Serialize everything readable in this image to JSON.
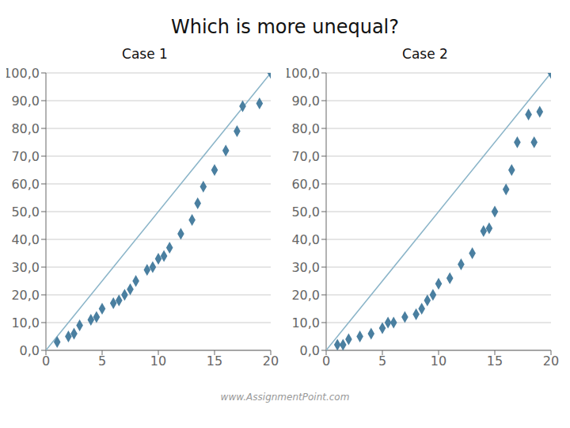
{
  "title": "Which is more unequal?",
  "annotations": [
    "www.AssignmentPoint.com"
  ],
  "chart_data": [
    {
      "type": "scatter",
      "title": "Case 1",
      "xlim": [
        0,
        20
      ],
      "ylim": [
        0,
        100
      ],
      "xticks": [
        0,
        5,
        10,
        15,
        20
      ],
      "yticks": [
        {
          "value": 0,
          "label": "0,0"
        },
        {
          "value": 10,
          "label": "10,0"
        },
        {
          "value": 20,
          "label": "20,0"
        },
        {
          "value": 30,
          "label": "30,0"
        },
        {
          "value": 40,
          "label": "40,0"
        },
        {
          "value": 50,
          "label": "50,0"
        },
        {
          "value": 60,
          "label": "60,0"
        },
        {
          "value": 70,
          "label": "70,0"
        },
        {
          "value": 80,
          "label": "80,0"
        },
        {
          "value": 90,
          "label": "90,0"
        },
        {
          "value": 100,
          "label": "100,0"
        }
      ],
      "grid": true,
      "series": [
        {
          "type": "line",
          "line_style": "solid",
          "color": "#8ab4c8",
          "x": [
            0,
            20
          ],
          "values": [
            0,
            100
          ]
        },
        {
          "type": "scatter",
          "marker": "diamond",
          "color": "#4a7fa0",
          "x": [
            1,
            2,
            2.5,
            3,
            4,
            4.5,
            5,
            6,
            6.5,
            7,
            7.5,
            8,
            9,
            9.5,
            10,
            10.5,
            11,
            12,
            13,
            13.5,
            14,
            15,
            16,
            17,
            17.5,
            19,
            20
          ],
          "values": [
            3,
            5,
            6,
            9,
            11,
            12,
            15,
            17,
            18,
            20,
            22,
            25,
            29,
            30,
            33,
            34,
            37,
            42,
            47,
            53,
            59,
            65,
            72,
            79,
            88,
            89,
            100
          ]
        }
      ]
    },
    {
      "type": "scatter",
      "title": "Case 2",
      "xlim": [
        0,
        20
      ],
      "ylim": [
        0,
        100
      ],
      "xticks": [
        0,
        5,
        10,
        15,
        20
      ],
      "yticks": [
        {
          "value": 0,
          "label": "0,0"
        },
        {
          "value": 10,
          "label": "10,0"
        },
        {
          "value": 20,
          "label": "20,0"
        },
        {
          "value": 30,
          "label": "30,0"
        },
        {
          "value": 40,
          "label": "40,0"
        },
        {
          "value": 50,
          "label": "50,0"
        },
        {
          "value": 60,
          "label": "60,0"
        },
        {
          "value": 70,
          "label": "70,0"
        },
        {
          "value": 80,
          "label": "80,0"
        },
        {
          "value": 90,
          "label": "90,0"
        },
        {
          "value": 100,
          "label": "100,0"
        }
      ],
      "grid": true,
      "series": [
        {
          "type": "line",
          "line_style": "solid",
          "color": "#8ab4c8",
          "x": [
            0,
            20
          ],
          "values": [
            0,
            100
          ]
        },
        {
          "type": "scatter",
          "marker": "diamond",
          "color": "#4a7fa0",
          "x": [
            1,
            1.5,
            2,
            3,
            4,
            5,
            5.5,
            6,
            7,
            8,
            8.5,
            9,
            9.5,
            10,
            11,
            12,
            13,
            14,
            14.5,
            15,
            16,
            16.5,
            17,
            18,
            18.5,
            19,
            20
          ],
          "values": [
            2,
            2,
            4,
            5,
            6,
            8,
            10,
            10,
            12,
            13,
            15,
            18,
            20,
            24,
            26,
            31,
            35,
            43,
            44,
            50,
            58,
            65,
            75,
            85,
            75,
            86,
            100
          ]
        }
      ]
    }
  ]
}
